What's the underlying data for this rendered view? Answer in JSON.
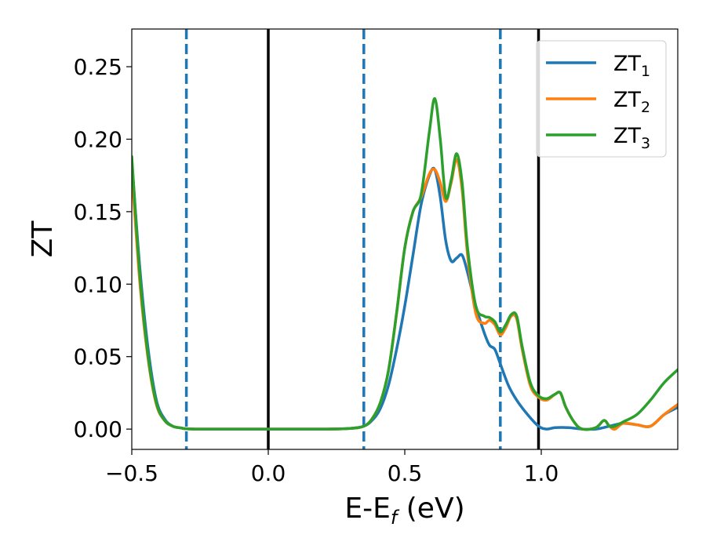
{
  "chart_data": {
    "type": "line",
    "xlabel": "E-E",
    "xlabel_sub": "f",
    "xlabel_unit": " (eV)",
    "ylabel": "ZT",
    "xlim": [
      -0.5,
      1.5
    ],
    "ylim": [
      -0.014,
      0.276
    ],
    "xticks": [
      -0.5,
      0.0,
      0.5,
      1.0
    ],
    "xtick_labels": [
      "−0.5",
      "0.0",
      "0.5",
      "1.0"
    ],
    "yticks": [
      0.0,
      0.05,
      0.1,
      0.15,
      0.2,
      0.25
    ],
    "ytick_labels": [
      "0.00",
      "0.05",
      "0.10",
      "0.15",
      "0.20",
      "0.25"
    ],
    "grid": false,
    "legend_position": "top-right",
    "solid_vlines": [
      0.0,
      0.99
    ],
    "dashed_vlines": [
      -0.3,
      0.35,
      0.85
    ],
    "vline_colors": {
      "solid": "#000000",
      "dashed": "#1f77b4"
    },
    "series": [
      {
        "name": "ZT",
        "name_sub": "1",
        "color": "#1f77b4",
        "x": [
          -0.5,
          -0.47,
          -0.44,
          -0.41,
          -0.38,
          -0.35,
          -0.32,
          -0.3,
          -0.25,
          -0.1,
          0.0,
          0.2,
          0.3,
          0.35,
          0.38,
          0.41,
          0.44,
          0.47,
          0.5,
          0.53,
          0.56,
          0.59,
          0.61,
          0.63,
          0.65,
          0.67,
          0.69,
          0.71,
          0.73,
          0.76,
          0.79,
          0.81,
          0.83,
          0.85,
          0.88,
          0.91,
          0.95,
          0.99,
          1.02,
          1.05,
          1.1,
          1.15,
          1.2,
          1.25,
          1.3,
          1.35,
          1.4,
          1.45,
          1.5
        ],
        "y": [
          0.185,
          0.11,
          0.055,
          0.02,
          0.007,
          0.002,
          0.0008,
          0.0002,
          0.0,
          0.0,
          0.0,
          0.0,
          0.0005,
          0.002,
          0.006,
          0.014,
          0.03,
          0.055,
          0.085,
          0.12,
          0.155,
          0.175,
          0.179,
          0.16,
          0.13,
          0.116,
          0.118,
          0.12,
          0.108,
          0.085,
          0.067,
          0.058,
          0.055,
          0.045,
          0.03,
          0.02,
          0.01,
          0.002,
          0.0,
          0.001,
          0.001,
          0.0,
          0.0,
          0.002,
          0.004,
          0.003,
          0.002,
          0.01,
          0.015
        ]
      },
      {
        "name": "ZT",
        "name_sub": "2",
        "color": "#ff7f0e",
        "x": [
          -0.5,
          -0.47,
          -0.44,
          -0.41,
          -0.38,
          -0.35,
          -0.32,
          -0.3,
          -0.25,
          -0.1,
          0.0,
          0.2,
          0.3,
          0.35,
          0.38,
          0.41,
          0.44,
          0.47,
          0.5,
          0.53,
          0.56,
          0.59,
          0.61,
          0.63,
          0.65,
          0.67,
          0.69,
          0.71,
          0.73,
          0.76,
          0.79,
          0.81,
          0.83,
          0.85,
          0.87,
          0.89,
          0.91,
          0.93,
          0.96,
          0.99,
          1.02,
          1.05,
          1.07,
          1.09,
          1.12,
          1.15,
          1.2,
          1.23,
          1.25,
          1.27,
          1.3,
          1.35,
          1.4,
          1.45,
          1.5
        ],
        "y": [
          0.178,
          0.1,
          0.048,
          0.017,
          0.006,
          0.002,
          0.0008,
          0.0002,
          0.0,
          0.0,
          0.0,
          0.0,
          0.0005,
          0.002,
          0.007,
          0.018,
          0.04,
          0.08,
          0.125,
          0.15,
          0.16,
          0.176,
          0.179,
          0.17,
          0.157,
          0.17,
          0.186,
          0.165,
          0.12,
          0.08,
          0.073,
          0.075,
          0.072,
          0.065,
          0.07,
          0.078,
          0.076,
          0.055,
          0.03,
          0.022,
          0.02,
          0.024,
          0.025,
          0.015,
          0.005,
          0.0,
          0.001,
          0.006,
          0.002,
          0.0,
          0.004,
          0.003,
          0.002,
          0.01,
          0.017
        ]
      },
      {
        "name": "ZT",
        "name_sub": "3",
        "color": "#2ca02c",
        "x": [
          -0.5,
          -0.47,
          -0.44,
          -0.41,
          -0.38,
          -0.35,
          -0.32,
          -0.3,
          -0.25,
          -0.1,
          0.0,
          0.2,
          0.3,
          0.35,
          0.38,
          0.41,
          0.44,
          0.47,
          0.5,
          0.53,
          0.56,
          0.59,
          0.61,
          0.63,
          0.65,
          0.67,
          0.69,
          0.71,
          0.73,
          0.76,
          0.79,
          0.81,
          0.83,
          0.85,
          0.87,
          0.89,
          0.91,
          0.93,
          0.96,
          0.99,
          1.02,
          1.05,
          1.07,
          1.09,
          1.12,
          1.15,
          1.2,
          1.23,
          1.25,
          1.27,
          1.3,
          1.35,
          1.4,
          1.45,
          1.5
        ],
        "y": [
          0.188,
          0.105,
          0.05,
          0.018,
          0.006,
          0.002,
          0.0008,
          0.0002,
          0.0,
          0.0,
          0.0,
          0.0,
          0.0005,
          0.002,
          0.007,
          0.018,
          0.04,
          0.08,
          0.125,
          0.15,
          0.162,
          0.205,
          0.228,
          0.2,
          0.16,
          0.172,
          0.19,
          0.17,
          0.125,
          0.085,
          0.078,
          0.077,
          0.074,
          0.067,
          0.072,
          0.079,
          0.078,
          0.057,
          0.032,
          0.023,
          0.021,
          0.024,
          0.025,
          0.015,
          0.005,
          0.0,
          0.001,
          0.006,
          0.002,
          0.002,
          0.005,
          0.01,
          0.02,
          0.032,
          0.041
        ]
      }
    ]
  }
}
